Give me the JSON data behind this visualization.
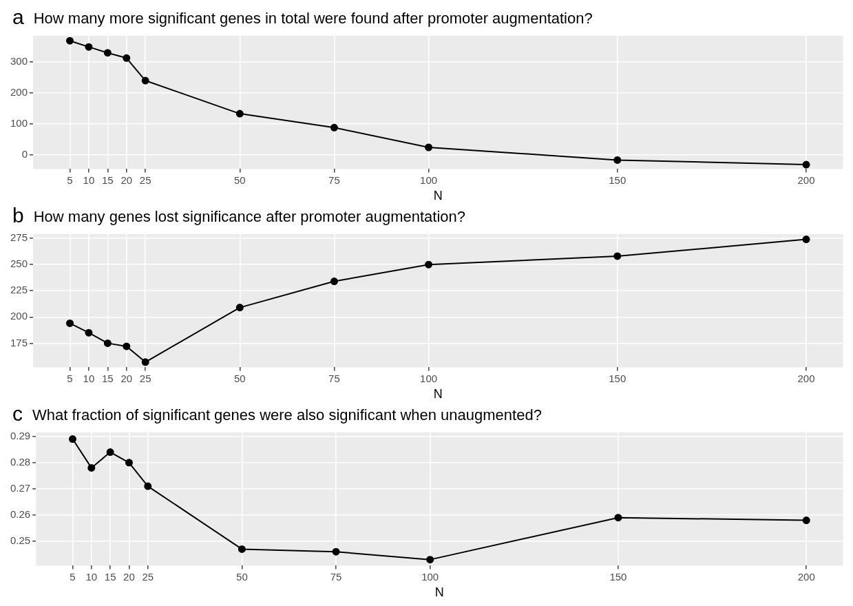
{
  "chart_data": [
    {
      "type": "line",
      "title": "How many more significant genes in total were found after promoter augmentation?",
      "annotations": [
        "a"
      ],
      "xlabel": "N",
      "x": [
        5,
        10,
        15,
        20,
        25,
        50,
        75,
        100,
        150,
        200
      ],
      "series": [
        {
          "color": "#000000",
          "values": [
            369,
            349,
            330,
            313,
            240,
            133,
            88,
            24,
            -17,
            -32
          ]
        }
      ],
      "xlim": [
        -4.75,
        209.75
      ],
      "xticks": [
        5,
        10,
        15,
        20,
        25,
        50,
        75,
        100,
        150,
        200
      ],
      "ylim": [
        -46,
        385
      ],
      "yticks": [
        0,
        100,
        200,
        300
      ],
      "grid": true,
      "marker": "circle",
      "line_style": "solid",
      "legend": false
    },
    {
      "type": "line",
      "title": "How many genes lost significance after promoter augmentation?",
      "annotations": [
        "b"
      ],
      "xlabel": "N",
      "x": [
        5,
        10,
        15,
        20,
        25,
        50,
        75,
        100,
        150,
        200
      ],
      "series": [
        {
          "color": "#000000",
          "values": [
            194,
            185,
            175,
            172,
            157,
            209,
            234,
            250,
            258,
            274
          ]
        }
      ],
      "xlim": [
        -4.75,
        209.75
      ],
      "xticks": [
        5,
        10,
        15,
        20,
        25,
        50,
        75,
        100,
        150,
        200
      ],
      "ylim": [
        152,
        279
      ],
      "yticks": [
        175,
        200,
        225,
        250,
        275
      ],
      "grid": true,
      "marker": "circle",
      "line_style": "solid",
      "legend": false
    },
    {
      "type": "line",
      "title": "What fraction of significant genes were also significant when unaugmented?",
      "annotations": [
        "c"
      ],
      "xlabel": "N",
      "x": [
        5,
        10,
        15,
        20,
        25,
        50,
        75,
        100,
        150,
        200
      ],
      "series": [
        {
          "color": "#000000",
          "values": [
            0.289,
            0.278,
            0.284,
            0.28,
            0.271,
            0.247,
            0.246,
            0.243,
            0.259,
            0.258
          ]
        }
      ],
      "xlim": [
        -4.75,
        209.75
      ],
      "xticks": [
        5,
        10,
        15,
        20,
        25,
        50,
        75,
        100,
        150,
        200
      ],
      "ylim": [
        0.2407,
        0.2915
      ],
      "yticks": [
        0.25,
        0.26,
        0.27,
        0.28,
        0.29
      ],
      "grid": true,
      "marker": "circle",
      "line_style": "solid",
      "legend": false
    }
  ]
}
